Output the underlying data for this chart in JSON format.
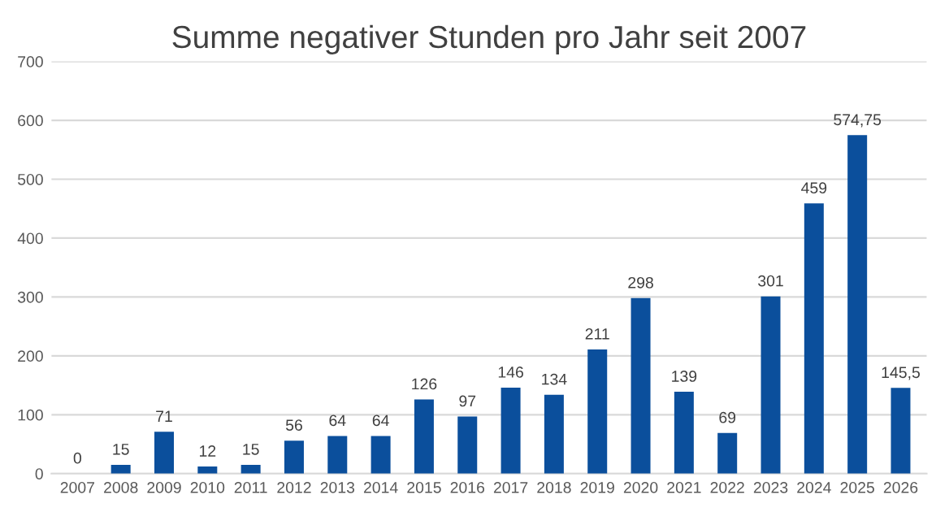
{
  "chart_data": {
    "type": "bar",
    "title": "Summe negativer Stunden pro Jahr seit 2007",
    "categories": [
      "2007",
      "2008",
      "2009",
      "2010",
      "2011",
      "2012",
      "2013",
      "2014",
      "2015",
      "2016",
      "2017",
      "2018",
      "2019",
      "2020",
      "2021",
      "2022",
      "2023",
      "2024",
      "2025",
      "2026"
    ],
    "values": [
      0,
      15,
      71,
      12,
      15,
      56,
      64,
      64,
      126,
      97,
      146,
      134,
      211,
      298,
      139,
      69,
      301,
      459,
      574.75,
      145.5
    ],
    "value_labels": [
      "0",
      "15",
      "71",
      "12",
      "15",
      "56",
      "64",
      "64",
      "126",
      "97",
      "146",
      "134",
      "211",
      "298",
      "139",
      "69",
      "301",
      "459",
      "574,75",
      "145,5"
    ],
    "color": "#0b4f9c",
    "ylim": [
      0,
      700
    ],
    "yticks": [
      0,
      100,
      200,
      300,
      400,
      500,
      600,
      700
    ],
    "grid": "y"
  }
}
